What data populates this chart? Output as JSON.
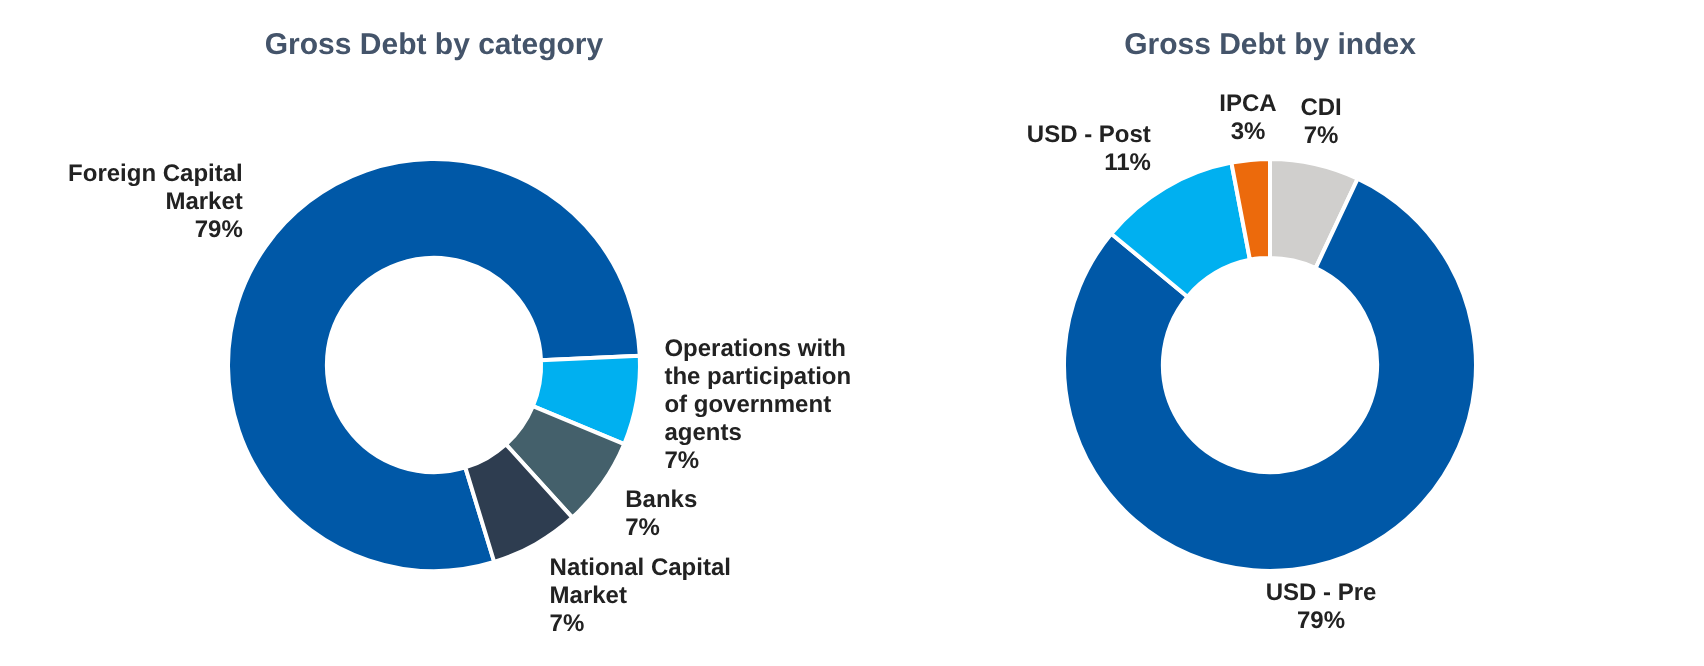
{
  "chart_data": [
    {
      "type": "donut",
      "title": "Gross Debt by category",
      "categories": [
        "Foreign Capital Market",
        "Operations with the participation of government agents",
        "Banks",
        "National Capital Market"
      ],
      "values": [
        79,
        7,
        7,
        7
      ],
      "value_labels": [
        "79%",
        "7%",
        "7%",
        "7%"
      ],
      "colors": [
        "#0058a7",
        "#00b0f0",
        "#44606b",
        "#2e3d50"
      ],
      "legend": false
    },
    {
      "type": "donut",
      "title": "Gross Debt by index",
      "categories": [
        "CDI",
        "USD - Pre",
        "USD - Post",
        "IPCA"
      ],
      "values": [
        7,
        79,
        11,
        3
      ],
      "value_labels": [
        "7%",
        "79%",
        "11%",
        "3%"
      ],
      "colors": [
        "#d0cfcd",
        "#0058a7",
        "#00b0f0",
        "#ec6a0c"
      ],
      "legend": false
    }
  ]
}
